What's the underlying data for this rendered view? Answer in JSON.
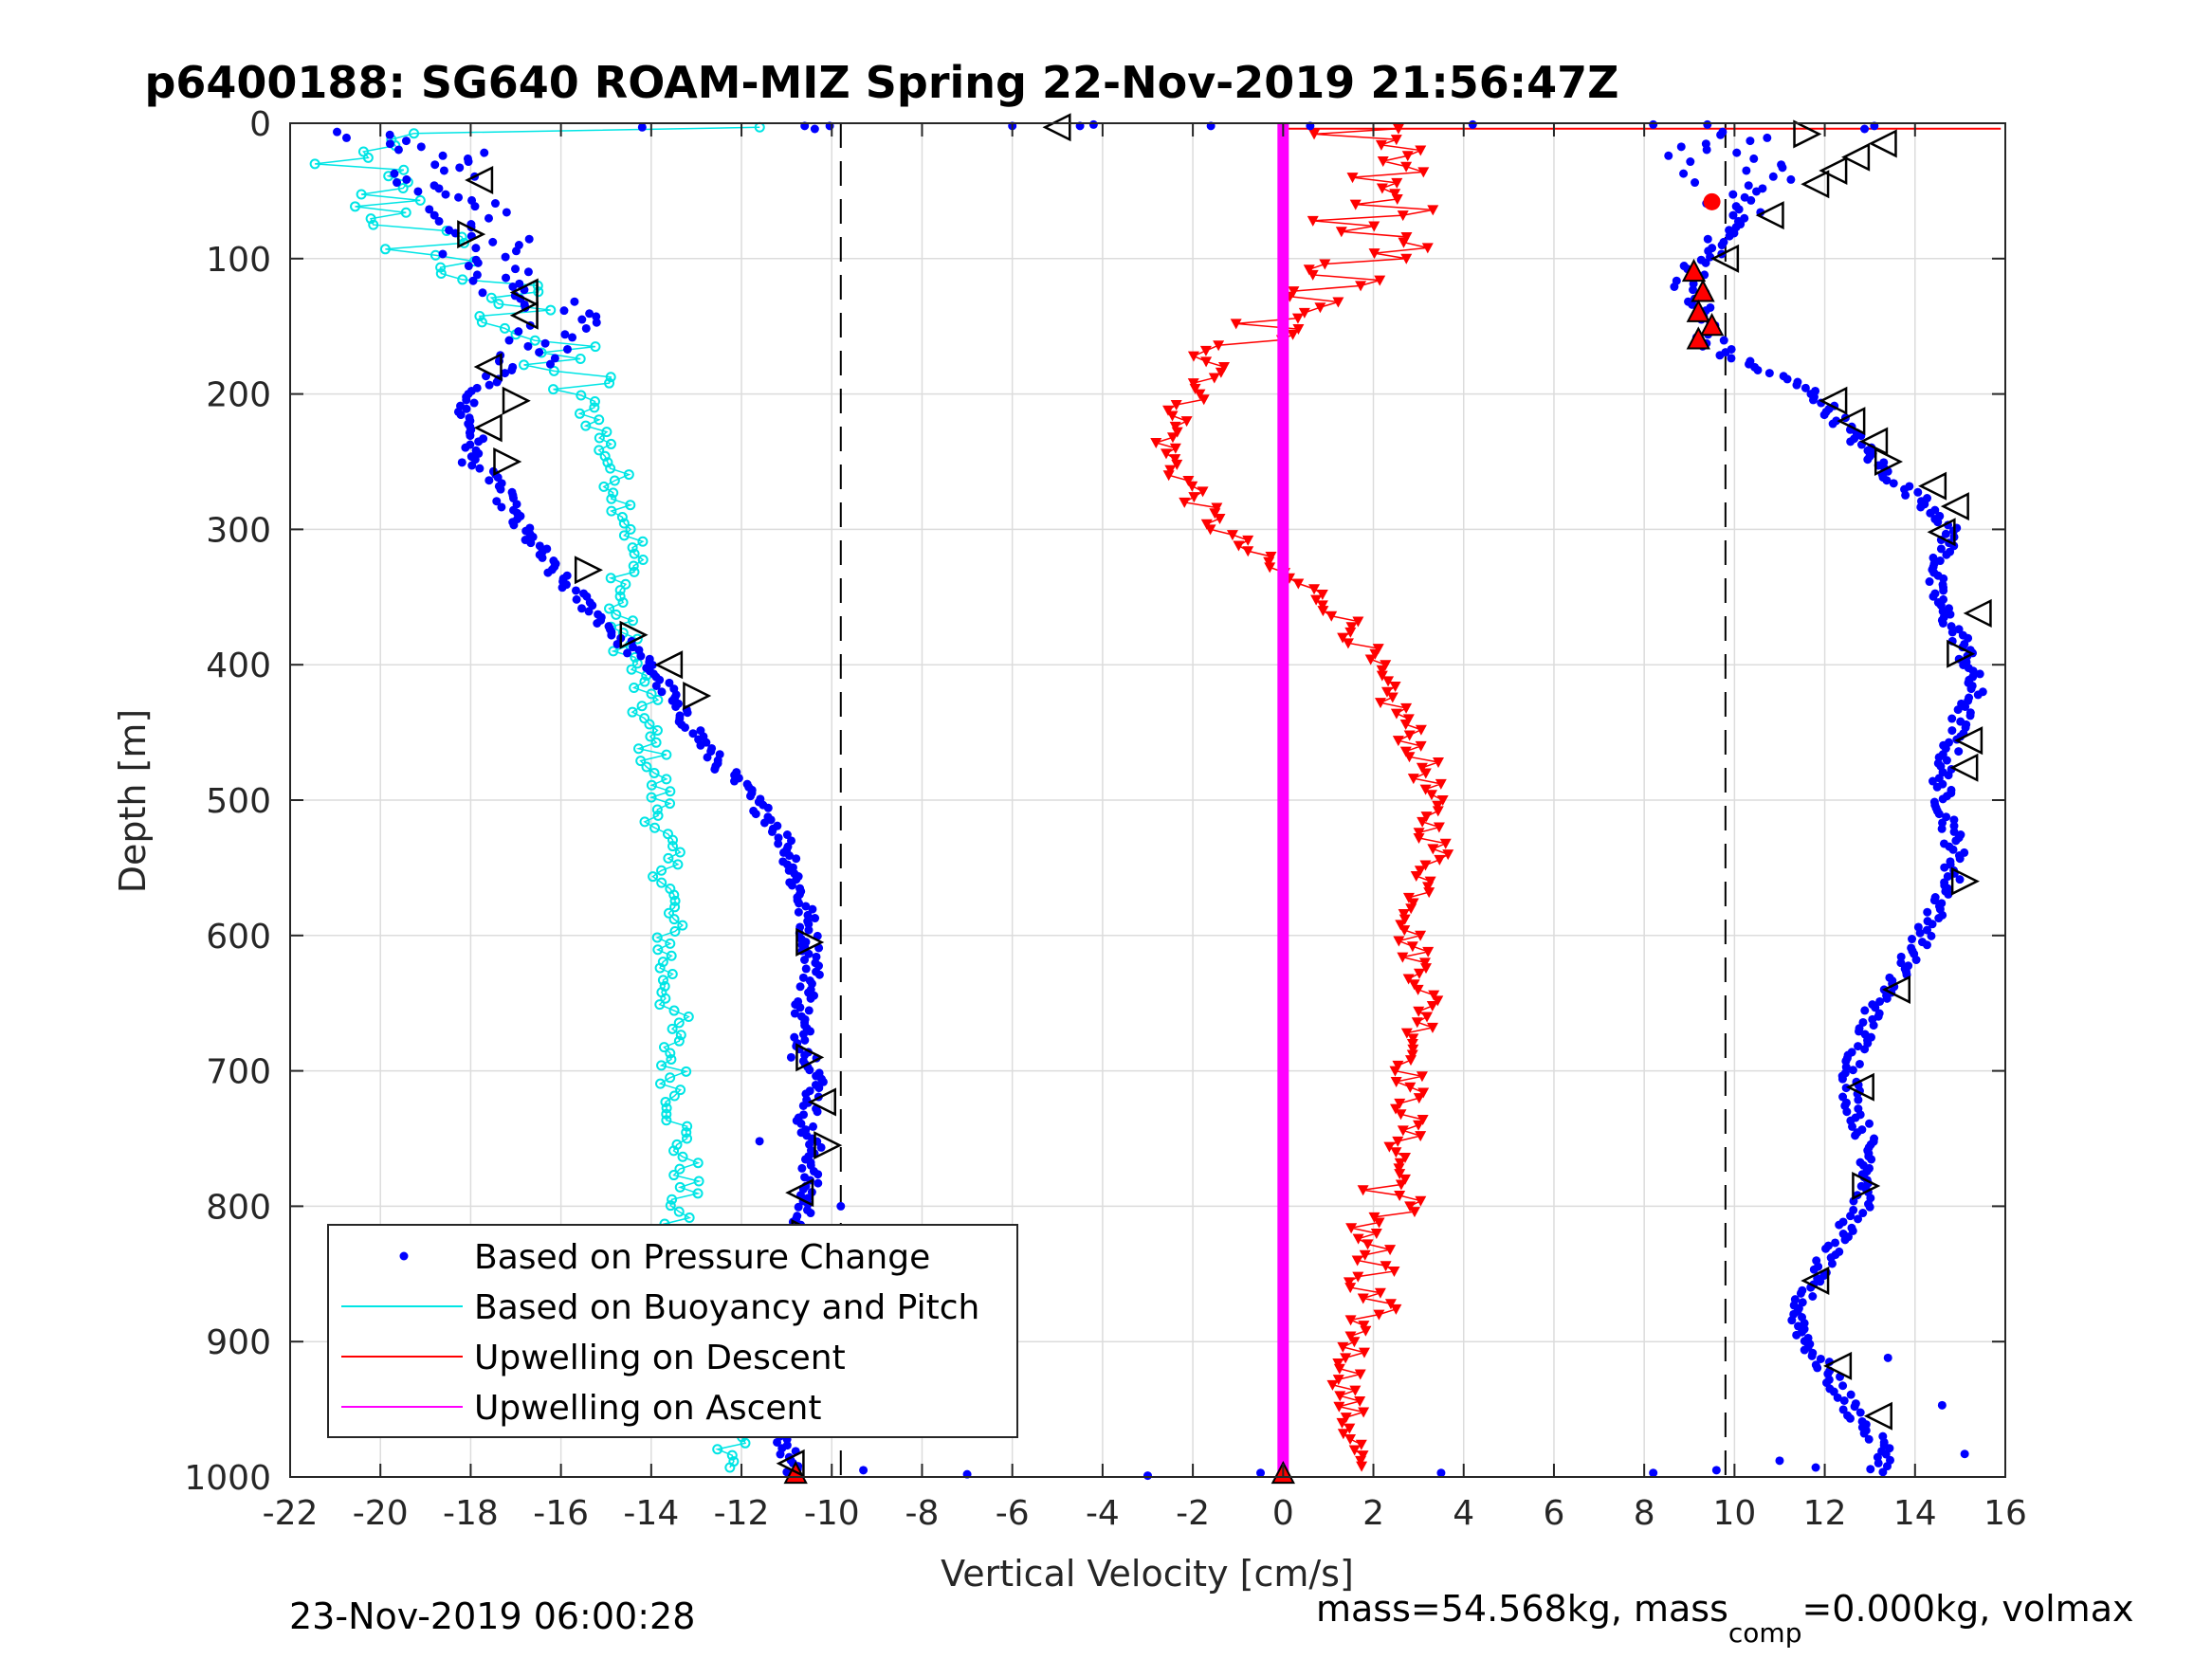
{
  "figure": {
    "footer_left": "23-Nov-2019 06:00:28",
    "footer_right_parts": [
      "mass=54.568kg, mass",
      "comp",
      "=0.000kg, volmax"
    ]
  },
  "chart_data": {
    "type": "scatter",
    "title": "p6400188: SG640 ROAM-MIZ Spring 22-Nov-2019 21:56:47Z",
    "xlabel": "Vertical Velocity [cm/s]",
    "ylabel": "Depth [m]",
    "xlim": [
      -22,
      16
    ],
    "ylim": [
      0,
      1000
    ],
    "y_reversed": true,
    "grid": true,
    "legend_location": "bottom-left",
    "xticks": [
      "-22",
      "-20",
      "-18",
      "-16",
      "-14",
      "-12",
      "-10",
      "-8",
      "-6",
      "-4",
      "-2",
      "0",
      "2",
      "4",
      "6",
      "8",
      "10",
      "12",
      "14",
      "16"
    ],
    "yticks": [
      "0",
      "100",
      "200",
      "300",
      "400",
      "500",
      "600",
      "700",
      "800",
      "900",
      "1000"
    ],
    "reference_lines": [
      -9.8,
      9.8
    ],
    "series": [
      {
        "name": "Based on Pressure Change",
        "color": "#0000ff",
        "marker": "dot",
        "dive_x": [
          -20.8,
          -18.6,
          -18.8,
          -18.0,
          -17.6,
          -17.8,
          -17.4,
          -16.8,
          -16.2,
          -15.8,
          -16.4,
          -16.9,
          -17.6,
          -18.2,
          -17.9,
          -18.0,
          -17.4,
          -17.2,
          -17.0,
          -16.6,
          -16.2,
          -15.6,
          -15.0,
          -14.4,
          -13.8,
          -13.5,
          -13.0,
          -12.6,
          -12.0,
          -11.6,
          -11.2,
          -10.9,
          -10.8,
          -10.6,
          -10.5,
          -10.4,
          -10.5,
          -10.7,
          -10.6,
          -10.3,
          -10.4,
          -10.6,
          -10.4,
          -10.5,
          -10.6,
          -10.7,
          -10.5,
          -10.6,
          -10.7,
          -10.8,
          -11.2,
          -11.0,
          -10.9
        ],
        "dive_y": [
          5,
          20,
          40,
          60,
          80,
          100,
          115,
          125,
          135,
          145,
          160,
          175,
          190,
          210,
          230,
          250,
          265,
          280,
          295,
          310,
          330,
          350,
          370,
          390,
          410,
          430,
          450,
          470,
          490,
          505,
          520,
          540,
          560,
          580,
          600,
          620,
          640,
          660,
          680,
          700,
          720,
          740,
          760,
          780,
          800,
          820,
          840,
          860,
          880,
          900,
          940,
          980,
          1000
        ],
        "climb_x": [
          9.4,
          9.6,
          9.8,
          10.2,
          10.4,
          10.0,
          9.6,
          9.2,
          9.0,
          9.2,
          9.4,
          9.5,
          10.4,
          11.2,
          11.8,
          12.2,
          12.6,
          13.0,
          13.4,
          14.0,
          14.6,
          14.8,
          14.6,
          14.4,
          14.6,
          15.0,
          15.2,
          15.3,
          15.0,
          14.8,
          14.6,
          14.6,
          14.8,
          14.9,
          14.8,
          14.5,
          14.2,
          13.8,
          13.4,
          13.0,
          12.8,
          12.6,
          12.6,
          12.8,
          13.0,
          13.0,
          12.8,
          12.4,
          12.0,
          11.6,
          11.4,
          11.6,
          12.0,
          12.4,
          12.8,
          13.2,
          13.4,
          13.2
        ],
        "climb_y": [
          5,
          15,
          30,
          45,
          60,
          75,
          90,
          105,
          120,
          135,
          150,
          165,
          180,
          190,
          200,
          215,
          230,
          245,
          260,
          275,
          290,
          305,
          320,
          340,
          360,
          380,
          400,
          420,
          440,
          460,
          480,
          500,
          520,
          540,
          560,
          580,
          600,
          620,
          640,
          660,
          680,
          700,
          720,
          740,
          760,
          780,
          800,
          820,
          840,
          860,
          880,
          900,
          920,
          940,
          960,
          975,
          985,
          995
        ]
      },
      {
        "name": "Based on Buoyancy and Pitch",
        "color": "#00e5e5",
        "marker": "open-circle",
        "x": [
          -18.0,
          -21.0,
          -20.6,
          -20.2,
          -19.8,
          -19.4,
          -19.0,
          -18.4,
          -17.6,
          -17.0,
          -16.6,
          -16.2,
          -15.8,
          -15.5,
          -15.2,
          -15.0,
          -14.8,
          -14.6,
          -14.4,
          -14.4,
          -14.6,
          -14.8,
          -14.6,
          -14.4,
          -14.2,
          -14.2,
          -14.0,
          -13.9,
          -13.8,
          -13.8,
          -13.7,
          -13.6,
          -13.6,
          -13.6,
          -13.7,
          -13.6,
          -13.5,
          -13.6,
          -13.5,
          -13.4,
          -13.4,
          -13.3,
          -13.2,
          -13.4,
          -13.6,
          -13.4,
          -13.2,
          -13.0,
          -12.8,
          -12.8,
          -12.6,
          -12.4,
          -12.2,
          -12.0
        ],
        "y": [
          5,
          15,
          30,
          45,
          60,
          75,
          90,
          105,
          120,
          140,
          160,
          175,
          190,
          205,
          220,
          240,
          260,
          280,
          300,
          320,
          340,
          360,
          380,
          400,
          420,
          440,
          460,
          480,
          500,
          520,
          540,
          560,
          580,
          600,
          620,
          640,
          660,
          680,
          700,
          720,
          740,
          760,
          780,
          800,
          820,
          840,
          860,
          880,
          900,
          920,
          940,
          960,
          980,
          995
        ]
      },
      {
        "name": "Upwelling on Descent",
        "color": "#ff0000",
        "marker": "down-triangle",
        "x": [
          1.0,
          1.6,
          2.4,
          1.8,
          2.6,
          1.6,
          2.2,
          1.6,
          1.0,
          0.2,
          -0.4,
          -0.8,
          -1.2,
          -1.8,
          -2.2,
          -2.4,
          -2.6,
          -2.4,
          -2.0,
          -1.8,
          -1.4,
          -0.8,
          -0.2,
          0.6,
          1.2,
          1.6,
          1.8,
          2.0,
          2.2,
          2.6,
          2.8,
          3.0,
          3.2,
          3.2,
          3.3,
          3.4,
          3.2,
          3.0,
          2.8,
          3.0,
          3.2,
          3.2,
          3.0,
          2.8,
          2.8,
          2.8,
          2.6,
          2.6,
          2.4,
          2.0,
          1.8,
          1.6,
          1.8,
          1.6,
          1.4,
          1.6
        ],
        "y": [
          5,
          15,
          30,
          45,
          60,
          75,
          90,
          105,
          120,
          135,
          150,
          165,
          180,
          195,
          210,
          225,
          240,
          255,
          270,
          285,
          300,
          315,
          330,
          345,
          360,
          375,
          390,
          405,
          420,
          435,
          450,
          465,
          480,
          500,
          520,
          540,
          560,
          580,
          600,
          620,
          640,
          660,
          680,
          700,
          720,
          740,
          760,
          780,
          800,
          820,
          840,
          860,
          880,
          900,
          940,
          980
        ]
      },
      {
        "name": "Upwelling on Ascent",
        "color": "#ff00ff",
        "marker": "line",
        "x": [
          0,
          0
        ],
        "y": [
          0,
          1000
        ]
      }
    ],
    "apogee_markers": [
      {
        "x": 9.5,
        "y": 58
      },
      {
        "x": 9.1,
        "y": 110
      },
      {
        "x": 9.3,
        "y": 125
      },
      {
        "x": 9.2,
        "y": 140
      },
      {
        "x": 9.5,
        "y": 150
      },
      {
        "x": 9.2,
        "y": 160
      },
      {
        "x": -10.8,
        "y": 998
      },
      {
        "x": 0.0,
        "y": 998
      }
    ],
    "open_triangle_markers": [
      {
        "x": -5.0,
        "y": 3,
        "dir": "left"
      },
      {
        "x": -17.8,
        "y": 42,
        "dir": "left"
      },
      {
        "x": -18.0,
        "y": 82,
        "dir": "right"
      },
      {
        "x": -16.8,
        "y": 125,
        "dir": "left"
      },
      {
        "x": -16.8,
        "y": 142,
        "dir": "left"
      },
      {
        "x": -17.6,
        "y": 180,
        "dir": "left"
      },
      {
        "x": -17.0,
        "y": 205,
        "dir": "right"
      },
      {
        "x": -17.6,
        "y": 225,
        "dir": "left"
      },
      {
        "x": -17.2,
        "y": 250,
        "dir": "right"
      },
      {
        "x": -15.4,
        "y": 330,
        "dir": "right"
      },
      {
        "x": -14.4,
        "y": 378,
        "dir": "right"
      },
      {
        "x": -13.6,
        "y": 400,
        "dir": "left"
      },
      {
        "x": -13.0,
        "y": 423,
        "dir": "right"
      },
      {
        "x": -10.5,
        "y": 605,
        "dir": "right"
      },
      {
        "x": -10.5,
        "y": 690,
        "dir": "right"
      },
      {
        "x": -10.2,
        "y": 723,
        "dir": "left"
      },
      {
        "x": -10.1,
        "y": 755,
        "dir": "right"
      },
      {
        "x": -10.7,
        "y": 790,
        "dir": "left"
      },
      {
        "x": -10.6,
        "y": 820,
        "dir": "right"
      },
      {
        "x": -10.9,
        "y": 990,
        "dir": "left"
      },
      {
        "x": 11.6,
        "y": 8,
        "dir": "right"
      },
      {
        "x": 13.3,
        "y": 15,
        "dir": "left"
      },
      {
        "x": 12.7,
        "y": 25,
        "dir": "left"
      },
      {
        "x": 12.2,
        "y": 35,
        "dir": "left"
      },
      {
        "x": 11.8,
        "y": 45,
        "dir": "left"
      },
      {
        "x": 10.8,
        "y": 68,
        "dir": "left"
      },
      {
        "x": 9.8,
        "y": 100,
        "dir": "left"
      },
      {
        "x": 12.2,
        "y": 205,
        "dir": "left"
      },
      {
        "x": 12.6,
        "y": 220,
        "dir": "left"
      },
      {
        "x": 13.1,
        "y": 235,
        "dir": "left"
      },
      {
        "x": 13.4,
        "y": 250,
        "dir": "right"
      },
      {
        "x": 14.4,
        "y": 268,
        "dir": "left"
      },
      {
        "x": 14.9,
        "y": 283,
        "dir": "left"
      },
      {
        "x": 14.6,
        "y": 302,
        "dir": "left"
      },
      {
        "x": 15.4,
        "y": 362,
        "dir": "left"
      },
      {
        "x": 15.0,
        "y": 392,
        "dir": "right"
      },
      {
        "x": 15.2,
        "y": 456,
        "dir": "left"
      },
      {
        "x": 15.1,
        "y": 476,
        "dir": "left"
      },
      {
        "x": 15.1,
        "y": 560,
        "dir": "right"
      },
      {
        "x": 13.6,
        "y": 640,
        "dir": "left"
      },
      {
        "x": 12.8,
        "y": 712,
        "dir": "left"
      },
      {
        "x": 12.9,
        "y": 785,
        "dir": "right"
      },
      {
        "x": 11.8,
        "y": 855,
        "dir": "left"
      },
      {
        "x": 12.3,
        "y": 918,
        "dir": "left"
      },
      {
        "x": 13.2,
        "y": 955,
        "dir": "left"
      }
    ],
    "legend": [
      "Based on Pressure Change",
      "Based on Buoyancy and Pitch",
      "Upwelling on Descent",
      "Upwelling on Ascent"
    ]
  }
}
